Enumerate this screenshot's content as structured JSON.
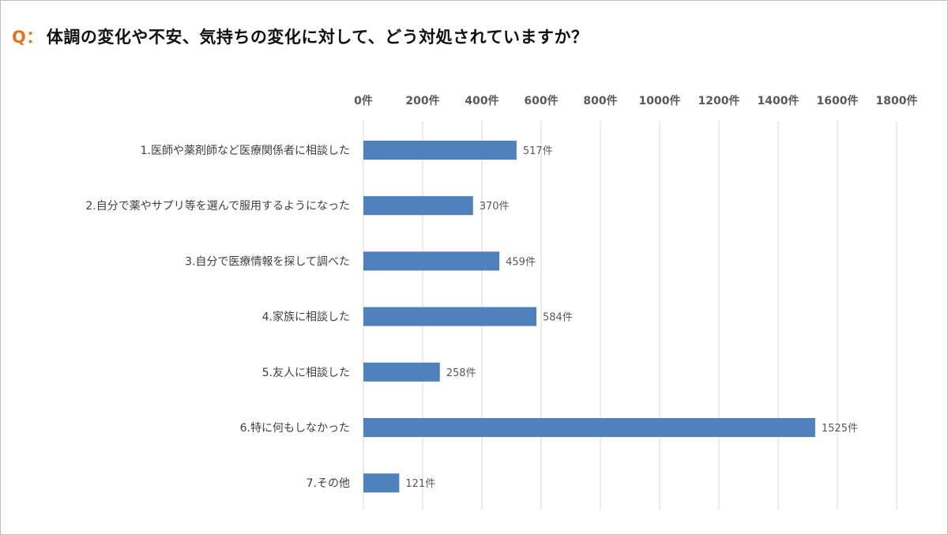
{
  "question": {
    "prefix": "Q：",
    "text": "体調の変化や不安、気持ちの変化に対して、どう対処されていますか？"
  },
  "chart_data": {
    "type": "bar",
    "orientation": "horizontal",
    "title": "",
    "xlabel": "",
    "ylabel": "",
    "xlim": [
      0,
      1800
    ],
    "tick_values": [
      0,
      200,
      400,
      600,
      800,
      1000,
      1200,
      1400,
      1600,
      1800
    ],
    "tick_labels": [
      "0件",
      "200件",
      "400件",
      "600件",
      "800件",
      "1000件",
      "1200件",
      "1400件",
      "1600件",
      "1800件"
    ],
    "axis_position": "top",
    "grid": true,
    "legend": "none",
    "bar_color": "#4f81bd",
    "grid_color": "#d9d9d9",
    "categories": [
      "1.医師や薬剤師など医療関係者に相談した",
      "2.自分で薬やサプリ等を選んで服用するようになった",
      "3.自分で医療情報を探して調べた",
      "4.家族に相談した",
      "5.友人に相談した",
      "6.特に何もしなかった",
      "7.その他"
    ],
    "values": [
      517,
      370,
      459,
      584,
      258,
      1525,
      121
    ],
    "data_labels": [
      "517件",
      "370件",
      "459件",
      "584件",
      "258件",
      "1525件",
      "121件"
    ]
  }
}
